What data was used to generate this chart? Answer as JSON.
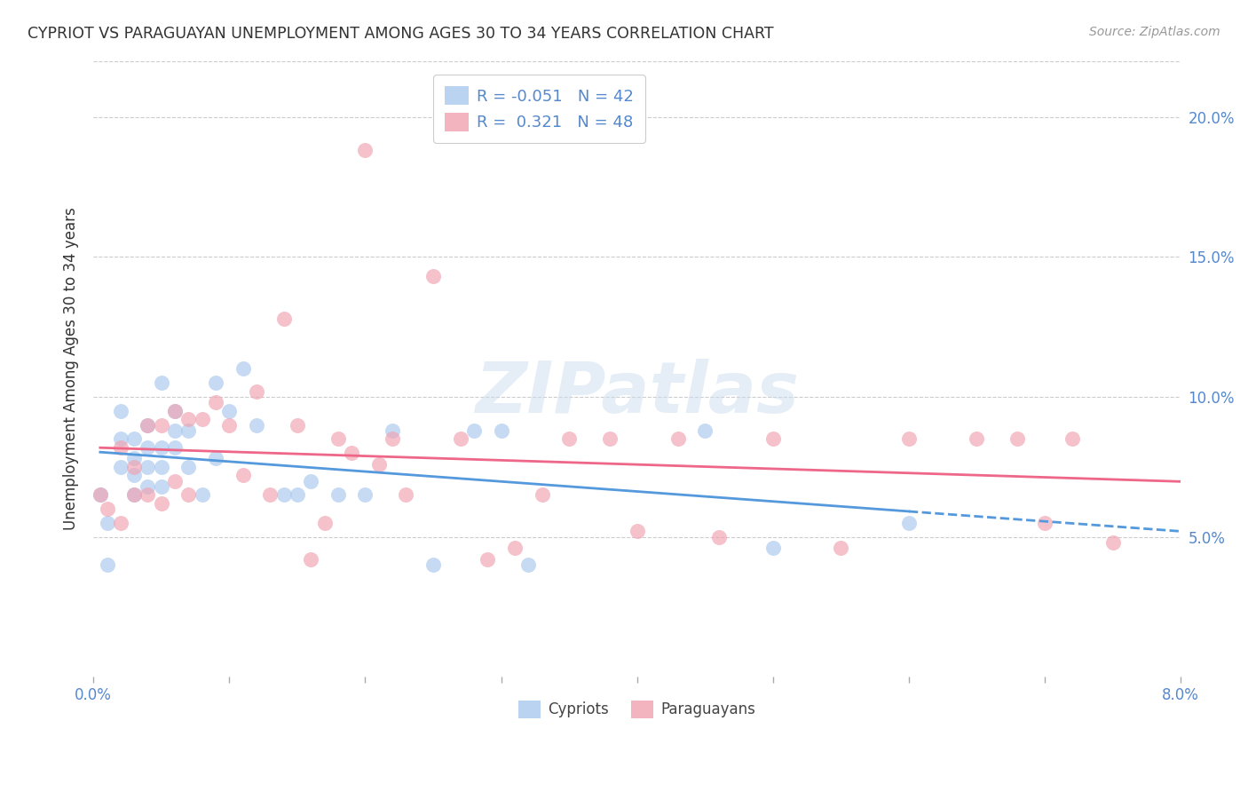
{
  "title": "CYPRIOT VS PARAGUAYAN UNEMPLOYMENT AMONG AGES 30 TO 34 YEARS CORRELATION CHART",
  "source": "Source: ZipAtlas.com",
  "ylabel": "Unemployment Among Ages 30 to 34 years",
  "legend_labels": [
    "Cypriots",
    "Paraguayans"
  ],
  "cypriot_R": -0.051,
  "cypriot_N": 42,
  "paraguayan_R": 0.321,
  "paraguayan_N": 48,
  "cypriot_color": "#A8C8EE",
  "paraguayan_color": "#F0A0B0",
  "trendline_cypriot_color": "#5599DD",
  "trendline_paraguayan_color": "#EE6688",
  "axis_label_color": "#5588CC",
  "title_color": "#333333",
  "background_color": "#FFFFFF",
  "grid_color": "#CCCCCC",
  "watermark": "ZIPatlas",
  "xlim": [
    0.0,
    0.08
  ],
  "ylim": [
    0.0,
    0.22
  ],
  "yticks": [
    0.05,
    0.1,
    0.15,
    0.2
  ],
  "yticklabels": [
    "5.0%",
    "10.0%",
    "15.0%",
    "20.0%"
  ],
  "cypriot_x": [
    0.0005,
    0.001,
    0.001,
    0.002,
    0.002,
    0.002,
    0.003,
    0.003,
    0.003,
    0.003,
    0.004,
    0.004,
    0.004,
    0.004,
    0.005,
    0.005,
    0.005,
    0.005,
    0.006,
    0.006,
    0.006,
    0.007,
    0.007,
    0.008,
    0.009,
    0.009,
    0.01,
    0.011,
    0.012,
    0.014,
    0.015,
    0.016,
    0.018,
    0.02,
    0.022,
    0.025,
    0.028,
    0.03,
    0.032,
    0.045,
    0.05,
    0.06
  ],
  "cypriot_y": [
    0.065,
    0.04,
    0.055,
    0.075,
    0.085,
    0.095,
    0.065,
    0.072,
    0.078,
    0.085,
    0.068,
    0.075,
    0.082,
    0.09,
    0.068,
    0.075,
    0.082,
    0.105,
    0.082,
    0.088,
    0.095,
    0.075,
    0.088,
    0.065,
    0.078,
    0.105,
    0.095,
    0.11,
    0.09,
    0.065,
    0.065,
    0.07,
    0.065,
    0.065,
    0.088,
    0.04,
    0.088,
    0.088,
    0.04,
    0.088,
    0.046,
    0.055
  ],
  "paraguayan_x": [
    0.0005,
    0.001,
    0.002,
    0.002,
    0.003,
    0.003,
    0.004,
    0.004,
    0.005,
    0.005,
    0.006,
    0.006,
    0.007,
    0.007,
    0.008,
    0.009,
    0.01,
    0.011,
    0.012,
    0.013,
    0.014,
    0.015,
    0.016,
    0.017,
    0.018,
    0.019,
    0.02,
    0.021,
    0.022,
    0.023,
    0.025,
    0.027,
    0.029,
    0.031,
    0.033,
    0.035,
    0.038,
    0.04,
    0.043,
    0.046,
    0.05,
    0.055,
    0.06,
    0.065,
    0.068,
    0.07,
    0.072,
    0.075
  ],
  "paraguayan_y": [
    0.065,
    0.06,
    0.055,
    0.082,
    0.065,
    0.075,
    0.065,
    0.09,
    0.062,
    0.09,
    0.07,
    0.095,
    0.065,
    0.092,
    0.092,
    0.098,
    0.09,
    0.072,
    0.102,
    0.065,
    0.128,
    0.09,
    0.042,
    0.055,
    0.085,
    0.08,
    0.188,
    0.076,
    0.085,
    0.065,
    0.143,
    0.085,
    0.042,
    0.046,
    0.065,
    0.085,
    0.085,
    0.052,
    0.085,
    0.05,
    0.085,
    0.046,
    0.085,
    0.085,
    0.085,
    0.055,
    0.085,
    0.048
  ],
  "trendline_cypriot_x_start": 0.0005,
  "trendline_cypriot_x_solid_end": 0.06,
  "trendline_cypriot_x_dash_end": 0.08,
  "trendline_paraguayan_x_start": 0.0005,
  "trendline_paraguayan_x_end": 0.08
}
